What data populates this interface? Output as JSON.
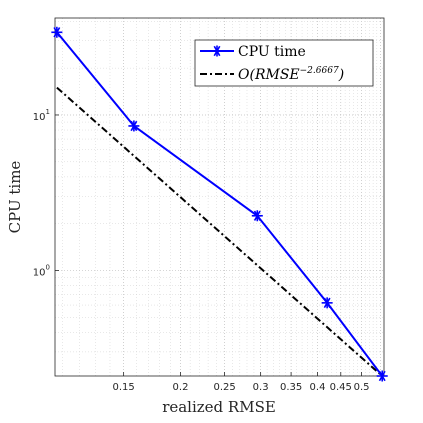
{
  "chart_data": {
    "type": "line",
    "xscale": "log",
    "yscale": "log",
    "xlabel": "realized RMSE",
    "ylabel": "CPU time",
    "xlim": [
      0.106,
      0.56
    ],
    "ylim": [
      0.21,
      42
    ],
    "grid": true,
    "legend_position": "top-right",
    "xticks": [
      {
        "value": 0.15,
        "label": "0.15"
      },
      {
        "value": 0.2,
        "label": "0.2"
      },
      {
        "value": 0.25,
        "label": "0.25"
      },
      {
        "value": 0.3,
        "label": "0.3"
      },
      {
        "value": 0.35,
        "label": "0.35"
      },
      {
        "value": 0.4,
        "label": "0.4"
      },
      {
        "value": 0.45,
        "label": "0.45"
      },
      {
        "value": 0.5,
        "label": "0.5"
      }
    ],
    "yticks": [
      {
        "value": 1,
        "base": "10",
        "exp": "0"
      },
      {
        "value": 10,
        "base": "10",
        "exp": "1"
      }
    ],
    "series": [
      {
        "name": "CPU time",
        "color": "#0000ff",
        "style": "solid",
        "marker": "asterisk",
        "x": [
          0.107,
          0.158,
          0.295,
          0.42,
          0.555
        ],
        "y": [
          34,
          8.5,
          2.25,
          0.62,
          0.21
        ]
      },
      {
        "name_prefix": "O(RMSE",
        "name_exp": "−2.6667",
        "name_suffix": ")",
        "color": "#000000",
        "style": "dashdot",
        "marker": "none",
        "x": [
          0.107,
          0.555
        ],
        "y": [
          15,
          0.21
        ]
      }
    ]
  }
}
